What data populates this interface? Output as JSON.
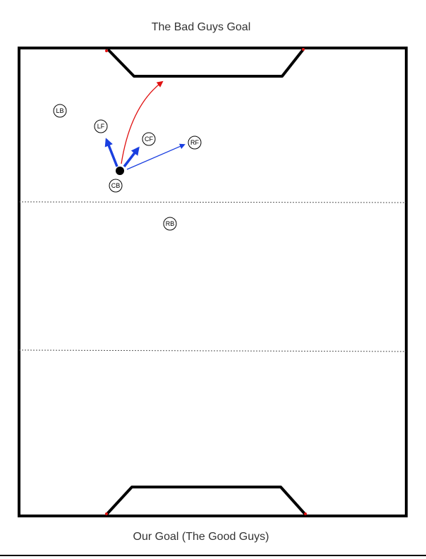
{
  "labels": {
    "top_goal": "The Bad Guys Goal",
    "bottom_goal": "Our Goal (The Good Guys)"
  },
  "players": [
    {
      "id": "LB",
      "label": "LB"
    },
    {
      "id": "LF",
      "label": "LF"
    },
    {
      "id": "CF",
      "label": "CF"
    },
    {
      "id": "RF",
      "label": "RF"
    },
    {
      "id": "CB",
      "label": "CB"
    },
    {
      "id": "RB",
      "label": "RB"
    }
  ],
  "colors": {
    "field_line": "#000000",
    "pass_arrow": "#1a3fe0",
    "shot_arrow": "#e01010",
    "ball": "#000000",
    "third_line": "#555555"
  }
}
